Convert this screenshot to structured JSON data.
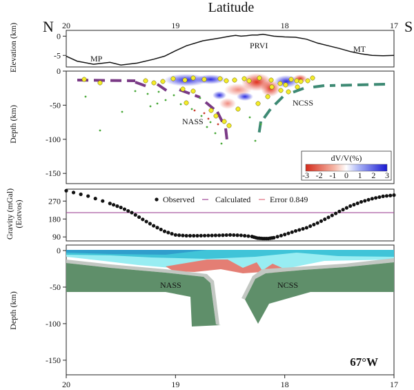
{
  "figure": {
    "title": "Latitude",
    "north_label": "N",
    "south_label": "S",
    "location_label": "67°W"
  },
  "chart_data": [
    {
      "type": "line",
      "panel": "elevation",
      "ylabel": "Elevation (km)",
      "xlim": [
        20,
        17
      ],
      "x_ticks": [
        "20",
        "19",
        "18",
        "17"
      ],
      "ylim": [
        -8,
        1.5
      ],
      "y_ticks": [
        "0",
        "-5"
      ],
      "series": [
        {
          "x": [
            20,
            19.9,
            19.75,
            19.6,
            19.5,
            19.35,
            19.2,
            19.1,
            19.0,
            18.9,
            18.75,
            18.6,
            18.5,
            18.45,
            18.4,
            18.35,
            18.3,
            18.25,
            18.2,
            18.1,
            18.0,
            17.9,
            17.8,
            17.7,
            17.6,
            17.5,
            17.4,
            17.3,
            17.2,
            17.1,
            17.0
          ],
          "y": [
            -5.2,
            -6.5,
            -7.3,
            -6.8,
            -7.5,
            -7.0,
            -6.0,
            -5.2,
            -3.8,
            -2.5,
            -1.2,
            -0.5,
            0.0,
            0.2,
            0.0,
            0.1,
            0.3,
            0.3,
            0.5,
            0.0,
            -0.2,
            -0.3,
            -0.8,
            -1.8,
            -2.5,
            -3.2,
            -4.0,
            -4.6,
            -5.0,
            -5.1,
            -5.0
          ]
        }
      ],
      "annotations": [
        "MP",
        "PRVI",
        "MT"
      ]
    },
    {
      "type": "heatmap",
      "panel": "tomography",
      "ylabel": "Depth (km)",
      "xlim": [
        20,
        17
      ],
      "ylim": [
        0,
        -165
      ],
      "y_ticks": [
        "0",
        "-50",
        "-100",
        "-150"
      ],
      "legend_title": "dV/V(%)",
      "scale_ticks": [
        "-3",
        "-2",
        "-1",
        "0",
        "1",
        "2",
        "3"
      ],
      "annotations": [
        "NASS",
        "NCSS"
      ],
      "slab_colors": {
        "NASS": "#7a3a86",
        "NCSS": "#3e8a74"
      }
    },
    {
      "type": "line",
      "panel": "gravity",
      "ylabel": "Gravity (mGal)",
      "ylabel2": "(Eotvos)",
      "xlim": [
        20,
        17
      ],
      "ylim": [
        70,
        330
      ],
      "y_ticks": [
        "270",
        "180",
        "90"
      ],
      "legend": [
        "Observed",
        "Calculated",
        "Error 0.849"
      ],
      "series": [
        {
          "name": "Observed",
          "x": [
            20.0,
            19.8,
            19.6,
            19.5,
            19.4,
            19.3,
            19.2,
            19.1,
            19.0,
            18.9,
            18.8,
            18.7,
            18.6,
            18.5,
            18.4,
            18.3,
            18.25,
            18.2,
            18.15,
            18.1,
            18.0,
            17.9,
            17.8,
            17.7,
            17.6,
            17.5,
            17.4,
            17.3,
            17.2,
            17.1,
            17.0
          ],
          "y": [
            322,
            295,
            258,
            238,
            212,
            178,
            146,
            118,
            100,
            96,
            96,
            97,
            98,
            100,
            98,
            92,
            84,
            82,
            82,
            86,
            102,
            120,
            136,
            160,
            188,
            218,
            245,
            266,
            282,
            294,
            300
          ]
        },
        {
          "name": "Calculated",
          "x": [
            20,
            17
          ],
          "y": [
            212,
            212
          ]
        }
      ]
    },
    {
      "type": "area",
      "panel": "cross_section",
      "ylabel": "Depth (km)",
      "xlim": [
        20,
        17
      ],
      "x_ticks": [
        "20",
        "19",
        "18",
        "17"
      ],
      "ylim": [
        0,
        -170
      ],
      "y_ticks": [
        "0",
        "-50",
        "-100",
        "-150"
      ],
      "annotations": [
        "NASS",
        "NCSS"
      ],
      "layer_colors": {
        "water": "#40c4d8",
        "crust": "#98edf2",
        "mantle_wedge": "#e47e74",
        "slab": "#5f8f6a",
        "slab_top": "#c2c7c2"
      }
    }
  ]
}
